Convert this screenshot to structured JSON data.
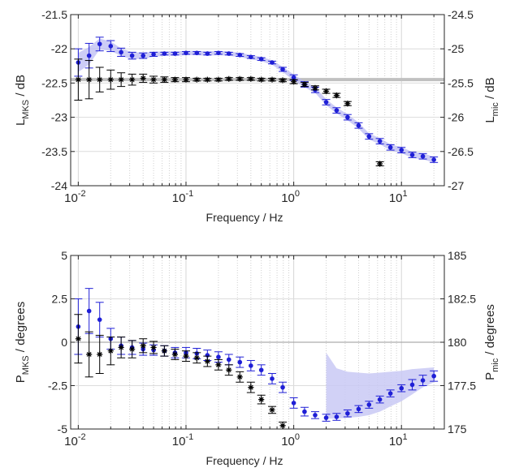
{
  "chart_data": [
    {
      "type": "scatter",
      "xlabel": "Frequency / Hz",
      "ylabel_left": {
        "main": "L",
        "sub": "MKS",
        "rest": " / dB"
      },
      "ylabel_right": {
        "main": "L",
        "sub": "mic",
        "rest": " / dB"
      },
      "xscale": "log",
      "xlim": [
        0.0085,
        25
      ],
      "ylim_left": [
        -24,
        -21.5
      ],
      "ylim_right": [
        -27,
        -24.5
      ],
      "left_ticks": [
        "-24",
        "-23.5",
        "-23",
        "-22.5",
        "-22",
        "-21.5"
      ],
      "right_ticks": [
        "-27",
        "-26.5",
        "-26",
        "-25.5",
        "-25",
        "-24.5"
      ],
      "x_ticks": [
        {
          "base": "10",
          "exp": "-2"
        },
        {
          "base": "10",
          "exp": "-1"
        },
        {
          "base": "10",
          "exp": "0"
        },
        {
          "base": "10",
          "exp": "1"
        }
      ],
      "grid": true,
      "reference_lines": {
        "right_axis": -25.45
      },
      "series": [
        {
          "axis": "left",
          "color": "#1f1fd6",
          "marker": "dot",
          "x": [
            0.01,
            0.0126,
            0.0158,
            0.02,
            0.025,
            0.0316,
            0.04,
            0.05,
            0.063,
            0.079,
            0.1,
            0.126,
            0.158,
            0.2,
            0.25,
            0.316,
            0.4,
            0.5,
            0.63,
            0.79,
            1.0,
            1.26,
            1.58,
            2.0,
            2.5,
            3.16,
            4.0,
            5.0,
            6.3,
            7.9,
            10,
            12.6,
            15.8,
            20
          ],
          "y": [
            -22.2,
            -22.1,
            -21.93,
            -21.96,
            -22.05,
            -22.1,
            -22.1,
            -22.08,
            -22.07,
            -22.07,
            -22.06,
            -22.06,
            -22.07,
            -22.06,
            -22.07,
            -22.09,
            -22.12,
            -22.15,
            -22.2,
            -22.3,
            -22.42,
            -22.52,
            -22.6,
            -22.78,
            -22.9,
            -23.0,
            -23.12,
            -23.28,
            -23.35,
            -23.44,
            -23.48,
            -23.55,
            -23.57,
            -23.62
          ],
          "err": [
            0.2,
            0.18,
            0.1,
            0.08,
            0.06,
            0.05,
            0.04,
            0.03,
            0.02,
            0.02,
            0.02,
            0.02,
            0.02,
            0.02,
            0.02,
            0.02,
            0.02,
            0.02,
            0.02,
            0.03,
            0.04,
            0.04,
            0.04,
            0.04,
            0.04,
            0.04,
            0.04,
            0.04,
            0.04,
            0.04,
            0.04,
            0.04,
            0.04,
            0.04
          ],
          "band": true
        },
        {
          "axis": "right",
          "color": "#000000",
          "marker": "star",
          "x": [
            0.01,
            0.0126,
            0.0158,
            0.02,
            0.025,
            0.0316,
            0.04,
            0.05,
            0.063,
            0.079,
            0.1,
            0.126,
            0.158,
            0.2,
            0.25,
            0.316,
            0.4,
            0.5,
            0.63,
            0.79,
            1.0,
            1.26,
            1.58,
            2.0,
            2.5,
            3.16,
            6.3
          ],
          "y": [
            -25.45,
            -25.45,
            -25.45,
            -25.45,
            -25.45,
            -25.45,
            -25.43,
            -25.45,
            -25.45,
            -25.45,
            -25.45,
            -25.45,
            -25.45,
            -25.45,
            -25.44,
            -25.44,
            -25.44,
            -25.45,
            -25.45,
            -25.46,
            -25.48,
            -25.52,
            -25.57,
            -25.62,
            -25.68,
            -25.8,
            -26.68
          ],
          "err": [
            0.3,
            0.28,
            0.18,
            0.14,
            0.1,
            0.08,
            0.06,
            0.05,
            0.04,
            0.03,
            0.03,
            0.02,
            0.02,
            0.02,
            0.02,
            0.02,
            0.02,
            0.02,
            0.02,
            0.02,
            0.03,
            0.03,
            0.03,
            0.03,
            0.03,
            0.03,
            0.03
          ]
        }
      ]
    },
    {
      "type": "scatter",
      "xlabel": "Frequency / Hz",
      "ylabel_left": {
        "main": "P",
        "sub": "MKS",
        "rest": " / degrees"
      },
      "ylabel_right": {
        "main": "P",
        "sub": "mic",
        "rest": " / degrees"
      },
      "xscale": "log",
      "xlim": [
        0.0085,
        25
      ],
      "ylim_left": [
        -5,
        5
      ],
      "ylim_right": [
        175,
        185
      ],
      "left_ticks": [
        "-5",
        "-2.5",
        "0",
        "2.5",
        "5"
      ],
      "right_ticks": [
        "175",
        "177.5",
        "180",
        "182.5",
        "185"
      ],
      "x_ticks": [
        {
          "base": "10",
          "exp": "-2"
        },
        {
          "base": "10",
          "exp": "-1"
        },
        {
          "base": "10",
          "exp": "0"
        },
        {
          "base": "10",
          "exp": "1"
        }
      ],
      "grid": true,
      "reference_lines": {
        "left_axis": 0
      },
      "shaded_region": {
        "x": [
          2.0,
          2.5,
          3.16,
          4.0,
          5.0,
          6.3,
          7.9,
          10,
          12.6,
          15.8,
          20
        ],
        "lower": [
          -4.4,
          -4.4,
          -4.35,
          -4.3,
          -4.2,
          -4.0,
          -3.7,
          -3.4,
          -3.0,
          -2.6,
          -2.3
        ],
        "upper": [
          -0.6,
          -1.5,
          -1.7,
          -1.75,
          -1.8,
          -1.75,
          -1.7,
          -1.65,
          -1.55,
          -1.5,
          -1.45
        ]
      },
      "series": [
        {
          "axis": "left",
          "color": "#1f1fd6",
          "marker": "dot",
          "x": [
            0.01,
            0.0126,
            0.0158,
            0.02,
            0.025,
            0.0316,
            0.04,
            0.05,
            0.063,
            0.079,
            0.1,
            0.126,
            0.158,
            0.2,
            0.25,
            0.316,
            0.4,
            0.5,
            0.63,
            0.79,
            1.0,
            1.26,
            1.58,
            2.0,
            2.5,
            3.16,
            4.0,
            5.0,
            6.3,
            7.9,
            10,
            12.6,
            15.8,
            20
          ],
          "y": [
            0.9,
            1.8,
            1.3,
            0.2,
            -0.2,
            -0.3,
            -0.4,
            -0.45,
            -0.5,
            -0.6,
            -0.6,
            -0.65,
            -0.75,
            -0.85,
            -1.0,
            -1.15,
            -1.35,
            -1.6,
            -2.1,
            -2.6,
            -3.5,
            -4.0,
            -4.2,
            -4.35,
            -4.3,
            -4.1,
            -3.85,
            -3.6,
            -3.3,
            -2.95,
            -2.65,
            -2.45,
            -2.2,
            -1.95
          ],
          "err": [
            1.6,
            1.3,
            1.0,
            0.6,
            0.5,
            0.4,
            0.35,
            0.3,
            0.3,
            0.3,
            0.3,
            0.3,
            0.3,
            0.3,
            0.3,
            0.3,
            0.3,
            0.3,
            0.3,
            0.3,
            0.3,
            0.25,
            0.2,
            0.2,
            0.2,
            0.2,
            0.2,
            0.2,
            0.2,
            0.2,
            0.2,
            0.3,
            0.3,
            0.3
          ]
        },
        {
          "axis": "right",
          "color": "#000000",
          "marker": "star",
          "x": [
            0.01,
            0.0126,
            0.0158,
            0.02,
            0.025,
            0.0316,
            0.04,
            0.05,
            0.063,
            0.079,
            0.1,
            0.126,
            0.158,
            0.2,
            0.25,
            0.316,
            0.4,
            0.5,
            0.63,
            0.79
          ],
          "y": [
            180.2,
            179.3,
            179.3,
            179.5,
            179.7,
            179.6,
            179.8,
            179.7,
            179.5,
            179.3,
            179.2,
            179.1,
            178.9,
            178.7,
            178.4,
            178.0,
            177.4,
            176.7,
            176.1,
            175.2
          ],
          "err": [
            1.4,
            1.3,
            1.1,
            0.8,
            0.6,
            0.5,
            0.4,
            0.35,
            0.3,
            0.3,
            0.3,
            0.3,
            0.3,
            0.3,
            0.3,
            0.3,
            0.3,
            0.25,
            0.2,
            0.2
          ]
        }
      ]
    }
  ]
}
